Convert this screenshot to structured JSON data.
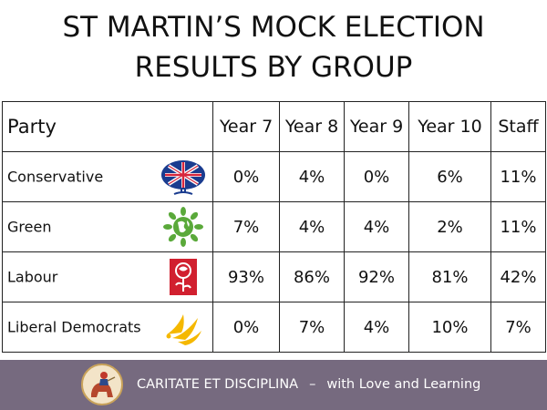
{
  "title": {
    "line1": "ST MARTIN’S MOCK ELECTION",
    "line2": "RESULTS BY GROUP"
  },
  "table": {
    "headers": [
      "Party",
      "Year 7",
      "Year 8",
      "Year 9",
      "Year 10",
      "Staff"
    ],
    "rows": [
      {
        "party": "Conservative",
        "logo": "conservative-tree-logo",
        "values": [
          "0%",
          "4%",
          "0%",
          "6%",
          "11%"
        ]
      },
      {
        "party": "Green",
        "logo": "green-earth-logo",
        "values": [
          "7%",
          "4%",
          "4%",
          "2%",
          "11%"
        ]
      },
      {
        "party": "Labour",
        "logo": "labour-rose-logo",
        "values": [
          "93%",
          "86%",
          "92%",
          "81%",
          "42%"
        ]
      },
      {
        "party": "Liberal Democrats",
        "logo": "libdem-bird-logo",
        "values": [
          "0%",
          "7%",
          "4%",
          "10%",
          "7%"
        ]
      }
    ]
  },
  "footer": {
    "motto_latin": "CARITATE ET DISCIPLINA",
    "separator": "–",
    "motto_english": "with Love and Learning",
    "crest_icon": "school-crest-icon",
    "background": "#766a7f"
  },
  "colors": {
    "conservative_blue": "#1a3c8f",
    "conservative_red": "#d7263d",
    "green": "#5aa93a",
    "labour_red": "#d1202f",
    "libdem_yellow": "#f5b800"
  }
}
